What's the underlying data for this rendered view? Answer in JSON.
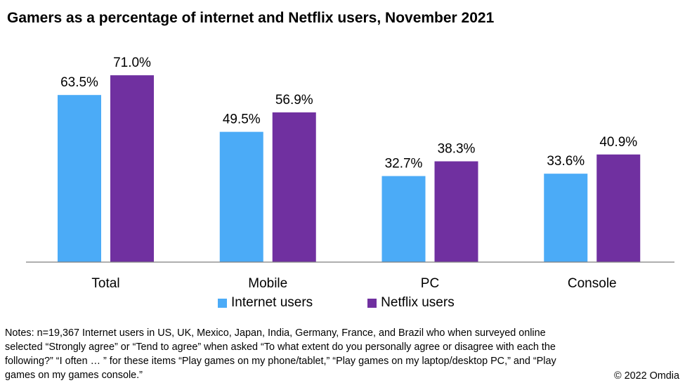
{
  "chart_data": {
    "type": "bar",
    "title": "Gamers as a percentage of internet and Netflix users, November 2021",
    "categories": [
      "Total",
      "Mobile",
      "PC",
      "Console"
    ],
    "series": [
      {
        "name": "Internet users",
        "color": "#4BABF7",
        "values": [
          63.5,
          49.5,
          32.7,
          33.6
        ],
        "labels": [
          "63.5%",
          "49.5%",
          "32.7%",
          "33.6%"
        ]
      },
      {
        "name": "Netflix users",
        "color": "#7030A0",
        "values": [
          71.0,
          56.9,
          38.3,
          40.9
        ],
        "labels": [
          "71.0%",
          "56.9%",
          "38.3%",
          "40.9%"
        ]
      }
    ],
    "xlabel": "",
    "ylabel": "",
    "ylim": [
      0,
      80
    ],
    "grid": false,
    "legend_position": "bottom"
  },
  "notes": "Notes: n=19,367 Internet users in US, UK, Mexico, Japan, India, Germany, France, and Brazil who when surveyed online selected “Strongly agree” or “Tend to agree” when asked “To what extent do you personally agree or disagree with each the following?” “I often … ” for these items “Play games on my phone/tablet,” “Play games on my laptop/desktop PC,” and “Play games on my games console.”",
  "copyright": "© 2022 Omdia",
  "axis_color": "#7F7F7F"
}
